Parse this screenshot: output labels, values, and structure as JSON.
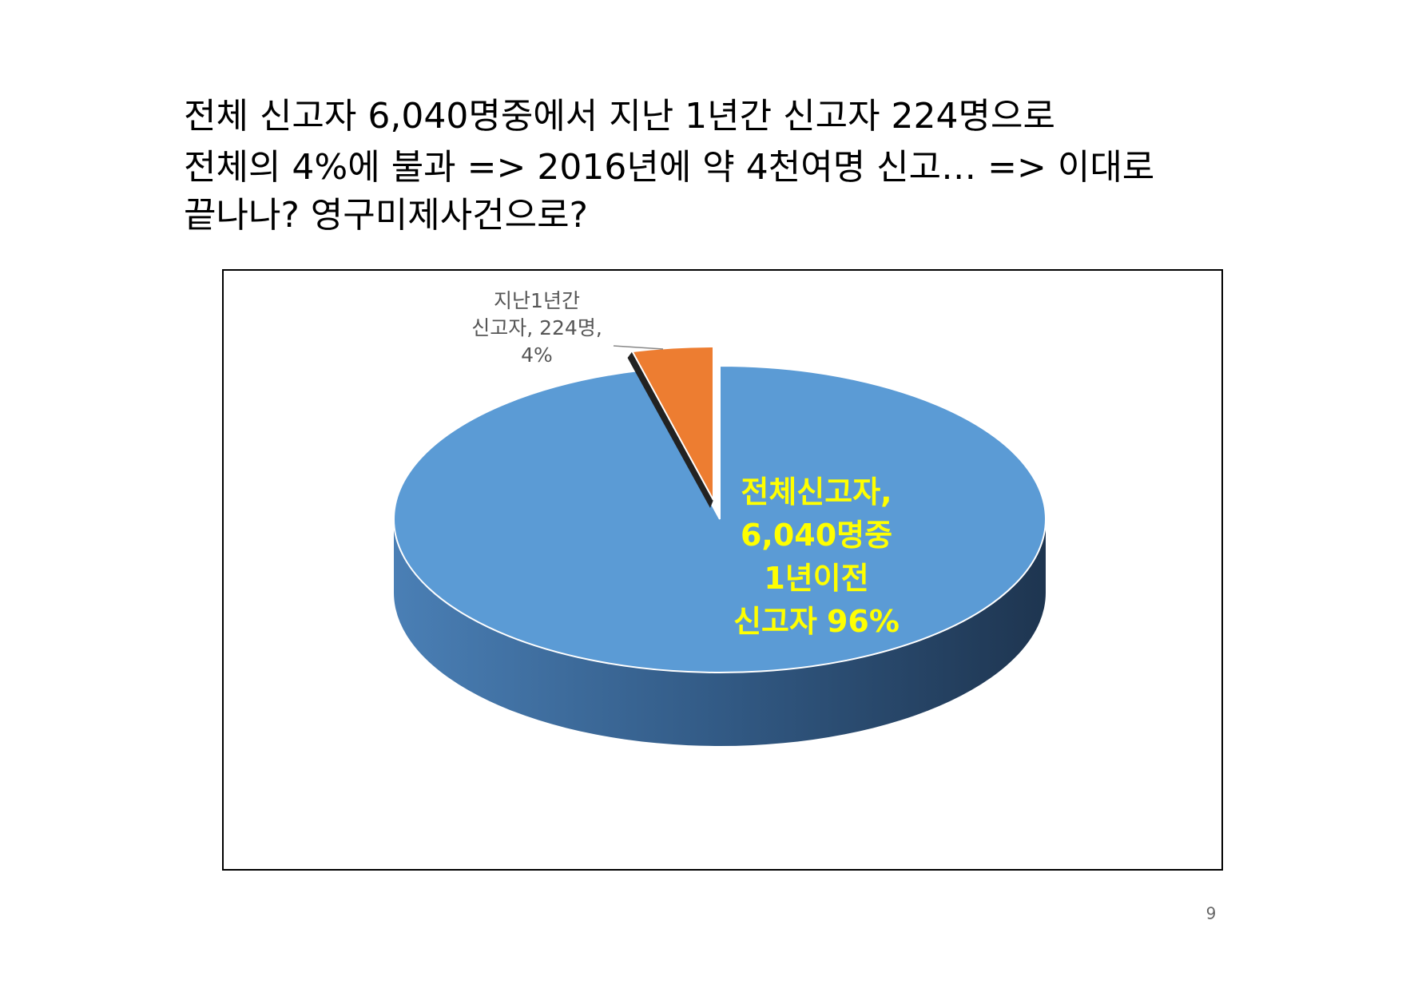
{
  "title": [
    "전체 신고자 6,040명중에서 지난 1년간 신고자 224명으로",
    "전체의 4%에 불과  => 2016년에 약 4천여명 신고…  => 이대로",
    "끝나나? 영구미제사건으로?"
  ],
  "page_number": "9",
  "chart_data": {
    "type": "pie",
    "categories": [
      [
        "지난1년간",
        "신고자, 224명,"
      ],
      [
        "전체신고자,",
        "6,040명중",
        "1년이전",
        "신고자"
      ]
    ],
    "values": [
      4,
      96
    ],
    "value_labels": [
      "4%",
      "96%"
    ],
    "colors": [
      "#ed7d31",
      "#5b9bd5"
    ]
  }
}
